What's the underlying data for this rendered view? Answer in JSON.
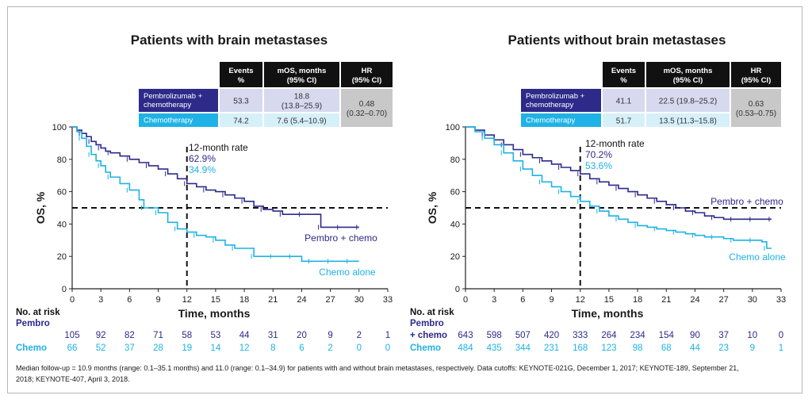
{
  "colors": {
    "pembro": "#2d2a8a",
    "chemo": "#1fb2e6",
    "header_bg": "#111111",
    "pembro_row": "#2d2a8a",
    "chemo_row": "#1fb2e6",
    "value_bg": "#d7d9ef",
    "value_bg2": "#d6f0fa",
    "hr_bg": "#c8c8c8"
  },
  "footnote": {
    "line1": "Median follow-up = 10.9 months (range: 0.1–35.1 months) and 11.0 (range: 0.1–34.9) for patients with and without brain metastases, respectively. Data cutoffs: KEYNOTE-021G, December 1, 2017; KEYNOTE-189, September 21,",
    "line2": "2018; KEYNOTE-407, April 3, 2018."
  },
  "chart_data": [
    {
      "type": "line",
      "title": "Patients with brain metastases",
      "xlabel": "Time, months",
      "ylabel": "OS, %",
      "xlim": [
        0,
        33
      ],
      "ylim": [
        0,
        100
      ],
      "xticks": [
        "0",
        "3",
        "6",
        "9",
        "12",
        "15",
        "18",
        "21",
        "24",
        "27",
        "30",
        "33"
      ],
      "yticks": [
        "0",
        "20",
        "40",
        "60",
        "80",
        "100"
      ],
      "grid": false,
      "reference_lines": {
        "y": 50,
        "x": 12
      },
      "rate_annotation": {
        "title": "12-month rate",
        "pembro": "62.9%",
        "chemo": "34.9%"
      },
      "series": [
        {
          "name": "Pembro + chemo",
          "color": "#2d2a8a",
          "x": [
            0,
            0.5,
            1,
            1.5,
            2,
            2.5,
            3,
            3.5,
            4,
            5,
            6,
            7,
            8,
            9,
            10,
            11,
            12,
            13,
            14,
            15,
            16,
            17,
            18,
            19,
            20,
            21,
            22,
            23,
            24,
            25,
            26,
            27,
            28,
            29,
            30
          ],
          "y": [
            100,
            98,
            96,
            94,
            91,
            89,
            87,
            85,
            84,
            82,
            80,
            78,
            76,
            74,
            71,
            68,
            65,
            63,
            61,
            60,
            58,
            56,
            54,
            51,
            49,
            48,
            46,
            46,
            46,
            46,
            38,
            38,
            38,
            38,
            38
          ]
        },
        {
          "name": "Chemo alone",
          "color": "#1fb2e6",
          "x": [
            0,
            0.5,
            1,
            1.5,
            2,
            2.5,
            3,
            3.5,
            4,
            5,
            6,
            7,
            7.5,
            8,
            9,
            10,
            11,
            12,
            13,
            14,
            15,
            16,
            17,
            18,
            19,
            20,
            21,
            22,
            23,
            24,
            25,
            26,
            27,
            28,
            29,
            30
          ],
          "y": [
            100,
            97,
            93,
            88,
            83,
            79,
            76,
            72,
            69,
            65,
            61,
            55,
            50,
            50,
            47,
            41,
            37,
            35,
            33,
            32,
            30,
            27,
            25,
            25,
            20,
            20,
            20,
            20,
            20,
            17,
            17,
            17,
            17,
            17,
            17,
            17
          ]
        }
      ],
      "risk_table": {
        "title": "No. at risk",
        "pembro_label": "Pembro",
        "chemo_label": "Chemo",
        "pembro": [
          "105",
          "92",
          "82",
          "71",
          "58",
          "53",
          "44",
          "31",
          "20",
          "9",
          "2",
          "1"
        ],
        "chemo": [
          "66",
          "52",
          "37",
          "28",
          "19",
          "14",
          "12",
          "8",
          "6",
          "2",
          "0",
          "0"
        ]
      },
      "table": {
        "headers": [
          "Events\n%",
          "mOS, months\n(95% CI)",
          "HR\n(95% CI)"
        ],
        "rows": [
          {
            "label": "Pembrolizumab +\nchemotherapy",
            "events": "53.3",
            "mos": "18.8\n(13.8–25.9)"
          },
          {
            "label": "Chemotherapy",
            "events": "74.2",
            "mos": "7.6 (5.4–10.9)"
          }
        ],
        "hr": "0.48\n(0.32–0.70)"
      }
    },
    {
      "type": "line",
      "title": "Patients without brain metastases",
      "xlabel": "Time, months",
      "ylabel": "OS, %",
      "xlim": [
        0,
        33
      ],
      "ylim": [
        0,
        100
      ],
      "xticks": [
        "0",
        "3",
        "6",
        "9",
        "12",
        "15",
        "18",
        "21",
        "24",
        "27",
        "30",
        "33"
      ],
      "yticks": [
        "0",
        "20",
        "40",
        "60",
        "80",
        "100"
      ],
      "grid": false,
      "reference_lines": {
        "y": 50,
        "x": 12
      },
      "rate_annotation": {
        "title": "12-month rate",
        "pembro": "70.2%",
        "chemo": "53.6%"
      },
      "series": [
        {
          "name": "Pembro + chemo",
          "color": "#2d2a8a",
          "x": [
            0,
            1,
            2,
            3,
            4,
            5,
            6,
            7,
            8,
            9,
            10,
            11,
            12,
            13,
            14,
            15,
            16,
            17,
            18,
            19,
            20,
            21,
            22,
            23,
            24,
            25,
            26,
            27,
            28,
            29,
            30,
            31,
            32
          ],
          "y": [
            100,
            98,
            95,
            92,
            89,
            86,
            83,
            81,
            79,
            77,
            75,
            73,
            71,
            68,
            66,
            64,
            62,
            60,
            58,
            56,
            54,
            52,
            50,
            48,
            47,
            45,
            44,
            43,
            43,
            43,
            43,
            43,
            43
          ]
        },
        {
          "name": "Chemo alone",
          "color": "#1fb2e6",
          "x": [
            0,
            1,
            2,
            3,
            4,
            5,
            6,
            7,
            8,
            9,
            10,
            11,
            12,
            13,
            14,
            15,
            16,
            17,
            18,
            19,
            20,
            21,
            22,
            23,
            24,
            25,
            26,
            27,
            28,
            29,
            30,
            31,
            31.5,
            32
          ],
          "y": [
            100,
            97,
            93,
            89,
            84,
            79,
            74,
            70,
            66,
            63,
            60,
            57,
            54,
            51,
            48,
            45,
            43,
            41,
            39,
            38,
            37,
            36,
            35,
            34,
            33,
            32,
            32,
            31,
            30,
            30,
            30,
            29,
            25,
            25
          ]
        }
      ],
      "risk_table": {
        "title": "No. at risk",
        "pembro_label": "Pembro",
        "pembro_label2": "+ chemo",
        "chemo_label": "Chemo",
        "pembro": [
          "643",
          "598",
          "507",
          "420",
          "333",
          "264",
          "234",
          "154",
          "90",
          "37",
          "10",
          "0"
        ],
        "chemo": [
          "484",
          "435",
          "344",
          "231",
          "168",
          "123",
          "98",
          "68",
          "44",
          "23",
          "9",
          "1"
        ]
      },
      "table": {
        "headers": [
          "Events\n%",
          "mOS, months\n(95% CI)",
          "HR\n(95% CI)"
        ],
        "rows": [
          {
            "label": "Pembrolizumab +\nchemotherapy",
            "events": "41.1",
            "mos": "22.5 (19.8–25.2)"
          },
          {
            "label": "Chemotherapy",
            "events": "51.7",
            "mos": "13.5 (11.3–15.8)"
          }
        ],
        "hr": "0.63\n(0.53–0.75)"
      }
    }
  ]
}
